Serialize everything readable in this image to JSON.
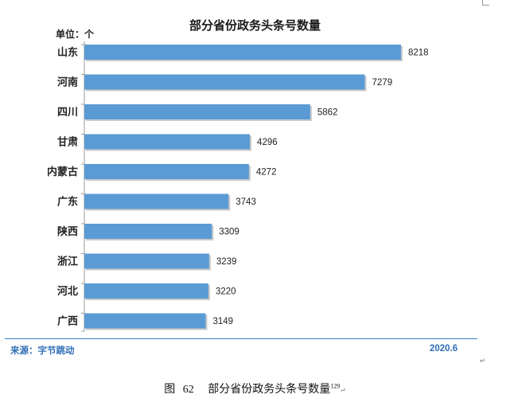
{
  "chart_data": {
    "type": "bar",
    "orientation": "horizontal",
    "title": "部分省份政务头条号数量",
    "unit_label": "单位：个",
    "categories": [
      "山东",
      "河南",
      "四川",
      "甘肃",
      "内蒙古",
      "广东",
      "陕西",
      "浙江",
      "河北",
      "广西"
    ],
    "values": [
      8218,
      7279,
      5862,
      4296,
      4272,
      3743,
      3309,
      3239,
      3220,
      3149
    ],
    "bar_color": "#5b9bd5",
    "grid": false,
    "legend": "none"
  },
  "footer": {
    "source": "来源：字节跳动",
    "date": "2020.6"
  },
  "caption": {
    "label": "图",
    "number": "62",
    "text": "部分省份政务头条号数量",
    "ref": "129"
  },
  "marks": {
    "paragraph": "↵"
  }
}
